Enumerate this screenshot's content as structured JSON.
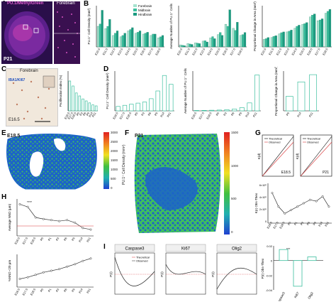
{
  "panels": {
    "A": {
      "letter": "A",
      "title": "PU.1/MethylGreen",
      "inset_title": "Forebrain",
      "age": "P21"
    },
    "B": {
      "letter": "B",
      "legend": [
        "Forebrain",
        "Midbrain",
        "Hindbrain"
      ],
      "ylabel1": "PU.1⁺ Cell Density (mm²)",
      "ylabel2": "Average Number of PU.1⁺ Cells",
      "ylabel3": "Proportional Change in Area (mm²)"
    },
    "C": {
      "letter": "C",
      "title": "Forebrain",
      "stain": "IBA1/KI67",
      "age": "E16.5",
      "ylabel": "Proliferation Index (%)"
    },
    "D": {
      "letter": "D",
      "ylabel1": "PU.1⁺ Cell Density (mm²)",
      "ylabel2": "Average Number of PU.1⁺ Cells",
      "ylabel3": "Proportional Change in Area (mm²)",
      "xlabels3": [
        "P9",
        "P14",
        "P21"
      ]
    },
    "E": {
      "letter": "E",
      "age": "E18.5",
      "cbar_label": "PU.1⁺ Cell Density (mm²)",
      "ticks": [
        "3000",
        "2500",
        "2000",
        "1500",
        "1000",
        "500",
        "0"
      ]
    },
    "F": {
      "letter": "F",
      "age": "P21",
      "cbar_label": "PU.1⁺ Cell Density (mm²)",
      "ticks": [
        "1500",
        "1000",
        "500",
        "0"
      ]
    },
    "G": {
      "letter": "G",
      "left_age": "E18.5",
      "right_age": "P21",
      "kd_label": "K(d)",
      "legend": [
        "Theoretical",
        "Observed"
      ],
      "ylabel": "K(r) Obs-Theo",
      "yticks": [
        "6×10⁵",
        "4×10⁵",
        "2×10⁵",
        "0"
      ]
    },
    "H": {
      "letter": "H",
      "ylabel1": "Average NND (μm)",
      "ylabel2": "%NND <20 μm",
      "sig": "****"
    },
    "I": {
      "letter": "I",
      "titles": [
        "Caspase3",
        "Ki67",
        "Olig2"
      ],
      "legend": [
        "Theoretical",
        "Observed"
      ],
      "ylabel": "P(r) Obs-Theo",
      "xcats": [
        "Caspase3",
        "Ki67",
        "Olig2"
      ],
      "yticks": [
        "0.02",
        "0",
        "-0.02",
        "-0.04"
      ],
      "sig": "***"
    }
  },
  "x_ages": [
    "E10.5",
    "E11.5",
    "E12.5",
    "E13.5",
    "E14.5",
    "E15.5",
    "E16.5",
    "E17.5",
    "E18.5"
  ],
  "x_ages_d": [
    "E16.5",
    "E17.5",
    "E18.5",
    "P0",
    "P3",
    "P6",
    "P9",
    "P14",
    "P21"
  ],
  "x_ages_h": [
    "E16.5",
    "E17.5",
    "E18.5",
    "P0",
    "P1",
    "P3",
    "P6",
    "P9",
    "P14",
    "P21"
  ],
  "colors": {
    "teal": "#3bbf9e",
    "teal_light": "#a6e3cf",
    "green": "#3fbf5f",
    "blue": "#1c63c8",
    "red": "#d8383a",
    "purple": "#3a1d6b",
    "magenta": "#e040c0"
  },
  "chart_data": [
    {
      "type": "bar",
      "panel": "B-left",
      "categories": [
        "E10.5",
        "E11.5",
        "E12.5",
        "E13.5",
        "E14.5",
        "E15.5",
        "E16.5",
        "E17.5",
        "E18.5"
      ],
      "series": [
        {
          "name": "Forebrain",
          "values": [
            45,
            40,
            25,
            22,
            35,
            30,
            28,
            25,
            20
          ]
        },
        {
          "name": "Midbrain",
          "values": [
            50,
            45,
            30,
            25,
            38,
            32,
            30,
            28,
            22
          ]
        },
        {
          "name": "Hindbrain",
          "values": [
            80,
            60,
            35,
            30,
            42,
            35,
            32,
            28,
            25
          ]
        }
      ]
    },
    {
      "type": "bar",
      "panel": "B-middle",
      "categories": [
        "E10.5",
        "E11.5",
        "E12.5",
        "E13.5",
        "E14.5",
        "E15.5",
        "E16.5",
        "E17.5",
        "E18.5"
      ],
      "series": [
        {
          "name": "Forebrain",
          "values": [
            5,
            8,
            10,
            14,
            22,
            30,
            55,
            45,
            28
          ]
        },
        {
          "name": "Midbrain",
          "values": [
            4,
            7,
            9,
            15,
            25,
            35,
            50,
            40,
            30
          ]
        },
        {
          "name": "Hindbrain",
          "values": [
            3,
            6,
            8,
            12,
            20,
            28,
            90,
            60,
            35
          ]
        }
      ]
    },
    {
      "type": "bar",
      "panel": "B-right",
      "categories": [
        "E10.5",
        "E11.5",
        "E12.5",
        "E13.5",
        "E14.5",
        "E15.5",
        "E16.5",
        "E17.5",
        "E18.5"
      ],
      "series": [
        {
          "name": "Forebrain",
          "values": [
            20,
            25,
            35,
            40,
            50,
            60,
            80,
            70,
            90
          ]
        },
        {
          "name": "Midbrain",
          "values": [
            22,
            28,
            38,
            42,
            55,
            62,
            85,
            72,
            95
          ]
        },
        {
          "name": "Hindbrain",
          "values": [
            25,
            30,
            40,
            45,
            58,
            65,
            88,
            75,
            100
          ]
        }
      ]
    },
    {
      "type": "bar",
      "panel": "D-left",
      "categories": [
        "E16.5",
        "E17.5",
        "E18.5",
        "P0",
        "P3",
        "P6",
        "P9",
        "P14",
        "P21"
      ],
      "values": [
        20,
        25,
        30,
        35,
        40,
        55,
        90,
        160,
        120
      ]
    },
    {
      "type": "bar",
      "panel": "D-middle",
      "categories": [
        "E16.5",
        "E17.5",
        "E18.5",
        "P0",
        "P3",
        "P6",
        "P9",
        "P14",
        "P21"
      ],
      "values": [
        10,
        12,
        15,
        20,
        30,
        45,
        80,
        200,
        900
      ]
    },
    {
      "type": "bar",
      "panel": "D-right",
      "categories": [
        "P9",
        "P14",
        "P21"
      ],
      "values": [
        40,
        80,
        100
      ]
    },
    {
      "type": "line",
      "panel": "H-top",
      "categories": [
        "E16.5",
        "E17.5",
        "E18.5",
        "P0",
        "P1",
        "P3",
        "P6",
        "P9",
        "P14",
        "P21"
      ],
      "values": [
        100,
        95,
        75,
        72,
        70,
        68,
        70,
        65,
        55,
        52
      ]
    },
    {
      "type": "line",
      "panel": "H-bottom",
      "categories": [
        "E16.5",
        "E17.5",
        "E18.5",
        "P0",
        "P1",
        "P3",
        "P6",
        "P9",
        "P14",
        "P21"
      ],
      "values": [
        30,
        32,
        35,
        38,
        40,
        42,
        45,
        48,
        52,
        55
      ]
    },
    {
      "type": "line",
      "panel": "G-bottom",
      "categories": [
        "E16.5",
        "E17.5",
        "E18.5",
        "P0",
        "P1",
        "P3",
        "P6",
        "P9",
        "P14",
        "P21"
      ],
      "values": [
        40,
        20,
        10,
        15,
        20,
        25,
        30,
        28,
        35,
        20
      ]
    },
    {
      "type": "bar",
      "panel": "I-right",
      "categories": [
        "Caspase3",
        "Ki67",
        "Olig2"
      ],
      "values": [
        0.015,
        -0.035,
        0.005
      ]
    }
  ]
}
